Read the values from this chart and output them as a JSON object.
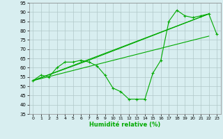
{
  "xlabel": "Humidité relative (%)",
  "background_color": "#d8eef0",
  "grid_color": "#b0c8c8",
  "line_color": "#00aa00",
  "xlim": [
    -0.5,
    23.5
  ],
  "ylim": [
    35,
    95
  ],
  "xticks": [
    0,
    1,
    2,
    3,
    4,
    5,
    6,
    7,
    8,
    9,
    10,
    11,
    12,
    13,
    14,
    15,
    16,
    17,
    18,
    19,
    20,
    21,
    22,
    23
  ],
  "yticks": [
    35,
    40,
    45,
    50,
    55,
    60,
    65,
    70,
    75,
    80,
    85,
    90,
    95
  ],
  "series": [
    {
      "x": [
        0,
        1,
        2,
        3,
        4,
        5,
        6,
        7,
        8,
        9,
        10,
        11,
        12,
        13,
        14,
        15,
        16,
        17,
        18,
        19,
        20,
        21,
        22,
        23
      ],
      "y": [
        53,
        56,
        55,
        60,
        63,
        63,
        64,
        63,
        61,
        56,
        49,
        47,
        43,
        43,
        43,
        57,
        64,
        85,
        91,
        88,
        87,
        88,
        89,
        78
      ],
      "marker": true
    },
    {
      "x": [
        0,
        22
      ],
      "y": [
        53,
        89
      ],
      "marker": false
    },
    {
      "x": [
        0,
        7,
        22
      ],
      "y": [
        53,
        64,
        89
      ],
      "marker": false
    },
    {
      "x": [
        0,
        22
      ],
      "y": [
        53,
        77
      ],
      "marker": false
    }
  ]
}
